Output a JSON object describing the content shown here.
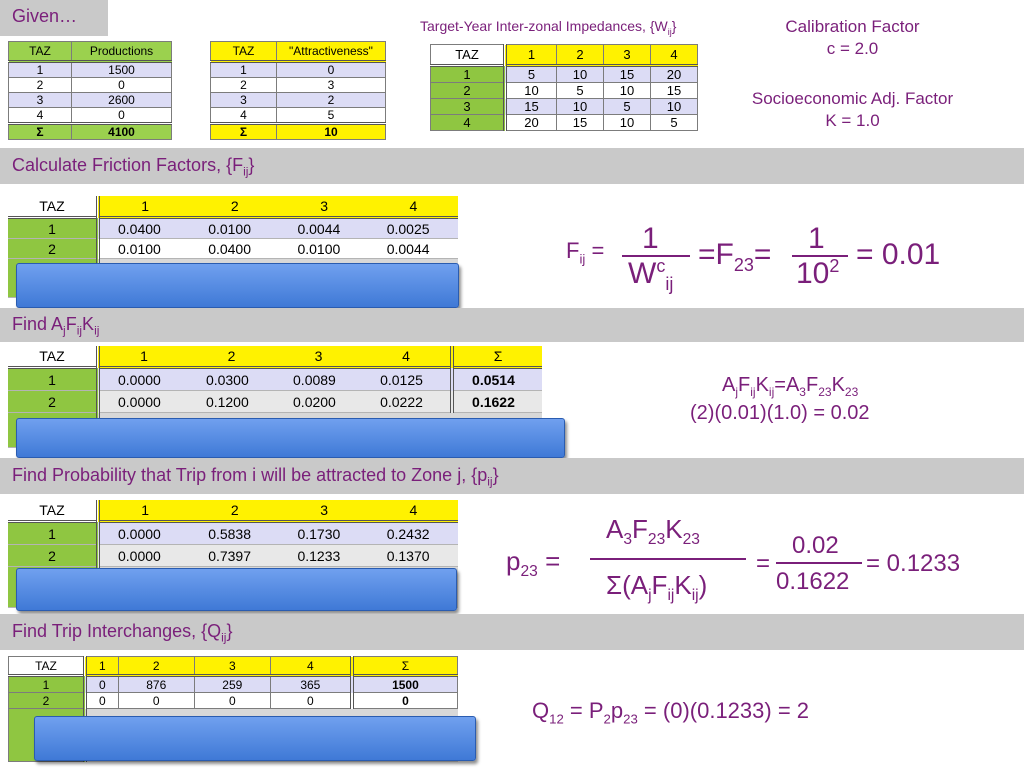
{
  "given": {
    "label": "Given…"
  },
  "impedance_title": "Target-Year Inter-zonal Impedances, {W",
  "impedance_title_sub": "ij",
  "impedance_title_end": "}",
  "calibration": {
    "label": "Calibration Factor",
    "value": "c = 2.0",
    "socio_label": "Socioeconomic Adj. Factor",
    "socio_value": "K = 1.0"
  },
  "productions": {
    "headers": [
      "TAZ",
      "Productions"
    ],
    "rows": [
      [
        "1",
        "1500"
      ],
      [
        "2",
        "0"
      ],
      [
        "3",
        "2600"
      ],
      [
        "4",
        "0"
      ]
    ],
    "sum": [
      "Σ",
      "4100"
    ]
  },
  "attractiveness": {
    "headers": [
      "TAZ",
      "\"Attractiveness\""
    ],
    "rows": [
      [
        "1",
        "0"
      ],
      [
        "2",
        "3"
      ],
      [
        "3",
        "2"
      ],
      [
        "4",
        "5"
      ]
    ],
    "sum": [
      "Σ",
      "10"
    ]
  },
  "impedances": {
    "headers": [
      "TAZ",
      "1",
      "2",
      "3",
      "4"
    ],
    "rows": [
      [
        "1",
        "5",
        "10",
        "15",
        "20"
      ],
      [
        "2",
        "10",
        "5",
        "10",
        "15"
      ],
      [
        "3",
        "15",
        "10",
        "5",
        "10"
      ],
      [
        "4",
        "20",
        "15",
        "10",
        "5"
      ]
    ]
  },
  "friction": {
    "section": "Calculate Friction Factors, {F",
    "section_sub": "ij",
    "section_end": "}",
    "headers": [
      "TAZ",
      "1",
      "2",
      "3",
      "4"
    ],
    "rows": [
      [
        "1",
        "0.0400",
        "0.0100",
        "0.0044",
        "0.0025"
      ],
      [
        "2",
        "0.0100",
        "0.0400",
        "0.0100",
        "0.0044"
      ]
    ],
    "eq": {
      "f": "F",
      "fsub": "ij",
      "eq1": "=",
      "one": "1",
      "w": "W",
      "wsup": "c",
      "wsub": "ij",
      "eq2": "=F",
      "f23sub": "23",
      "eq3": "=",
      "one2": "1",
      "ten": "10",
      "tensup": "2",
      "result": "= 0.01"
    }
  },
  "afk": {
    "section_pre": "Find A",
    "section_j": "j",
    "section_f": "F",
    "section_ij": "ij",
    "section_k": "K",
    "section_ij2": "ij",
    "headers": [
      "TAZ",
      "1",
      "2",
      "3",
      "4",
      "Σ"
    ],
    "rows": [
      [
        "1",
        "0.0000",
        "0.0300",
        "0.0089",
        "0.0125",
        "0.0514"
      ],
      [
        "2",
        "0.0000",
        "0.1200",
        "0.0200",
        "0.0222",
        "0.1622"
      ]
    ],
    "eq_line1": "A",
    "eq_line2": "(2)(0.01)(1.0) = 0.02"
  },
  "prob": {
    "section": "Find Probability that Trip from i will be attracted to Zone j, {p",
    "section_sub": "ij",
    "section_end": "}",
    "headers": [
      "TAZ",
      "1",
      "2",
      "3",
      "4"
    ],
    "rows": [
      [
        "1",
        "0.0000",
        "0.5838",
        "0.1730",
        "0.2432"
      ],
      [
        "2",
        "0.0000",
        "0.7397",
        "0.1233",
        "0.1370"
      ]
    ],
    "eq": {
      "p": "p",
      "psub": "23",
      "eq1": "=",
      "num": "A",
      "den": "Σ(A",
      "eq2": "=",
      "n2": "0.02",
      "d2": "0.1622",
      "result": "= 0.1233"
    }
  },
  "trips": {
    "section": "Find Trip Interchanges, {Q",
    "section_sub": "ij",
    "section_end": "}",
    "headers": [
      "TAZ",
      "1",
      "2",
      "3",
      "4",
      "Σ"
    ],
    "rows": [
      [
        "1",
        "0",
        "876",
        "259",
        "365",
        "1500"
      ],
      [
        "2",
        "0",
        "0",
        "0",
        "0",
        "0"
      ]
    ],
    "eq": "Q"
  }
}
